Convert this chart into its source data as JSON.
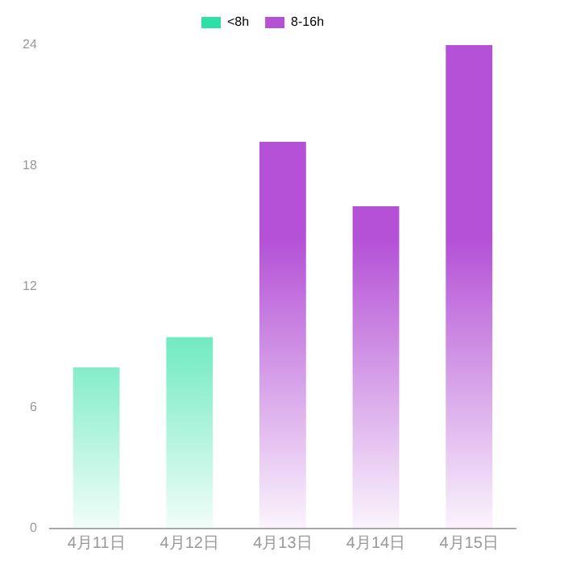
{
  "chart_data": {
    "type": "bar",
    "categories": [
      "4月11日",
      "4月12日",
      "4月13日",
      "4月14日",
      "4月15日"
    ],
    "series": [
      {
        "name": "<8h",
        "color": "#2de0a5",
        "values": [
          8,
          9.5,
          null,
          null,
          null
        ]
      },
      {
        "name": "8-16h",
        "color": "#b451d6",
        "values": [
          null,
          null,
          19.2,
          16,
          24
        ]
      }
    ],
    "ylim": [
      0,
      24
    ],
    "yticks": [
      0,
      6,
      12,
      18,
      24
    ],
    "grid": false,
    "legend": "top"
  }
}
